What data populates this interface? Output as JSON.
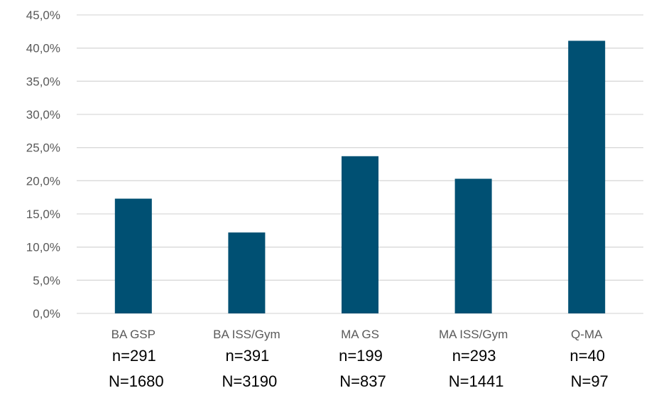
{
  "chart_data": {
    "type": "bar",
    "categories": [
      "BA GSP",
      "BA ISS/Gym",
      "MA GS",
      "MA ISS/Gym",
      "Q-MA"
    ],
    "values": [
      17.3,
      12.2,
      23.7,
      20.3,
      41.1
    ],
    "value_format": "percent_decimal_comma",
    "ylim": [
      0,
      45
    ],
    "yticks": [
      "0,0%",
      "5,0%",
      "10,0%",
      "15,0%",
      "20,0%",
      "25,0%",
      "30,0%",
      "35,0%",
      "40,0%",
      "45,0%"
    ],
    "grid": true,
    "legend": "none",
    "title": "",
    "xlabel": "",
    "ylabel": "",
    "sample_labels": [
      {
        "n": "n=291",
        "N": "N=1680"
      },
      {
        "n": "n=391",
        "N": "N=3190"
      },
      {
        "n": "n=199",
        "N": "N=837"
      },
      {
        "n": "n=293",
        "N": "N=1441"
      },
      {
        "n": "n=40",
        "N": "N=97"
      }
    ],
    "colors": {
      "bar": "#005073",
      "grid": "#d9d9d9",
      "tick_text": "#595959",
      "note_text": "#000000"
    }
  }
}
